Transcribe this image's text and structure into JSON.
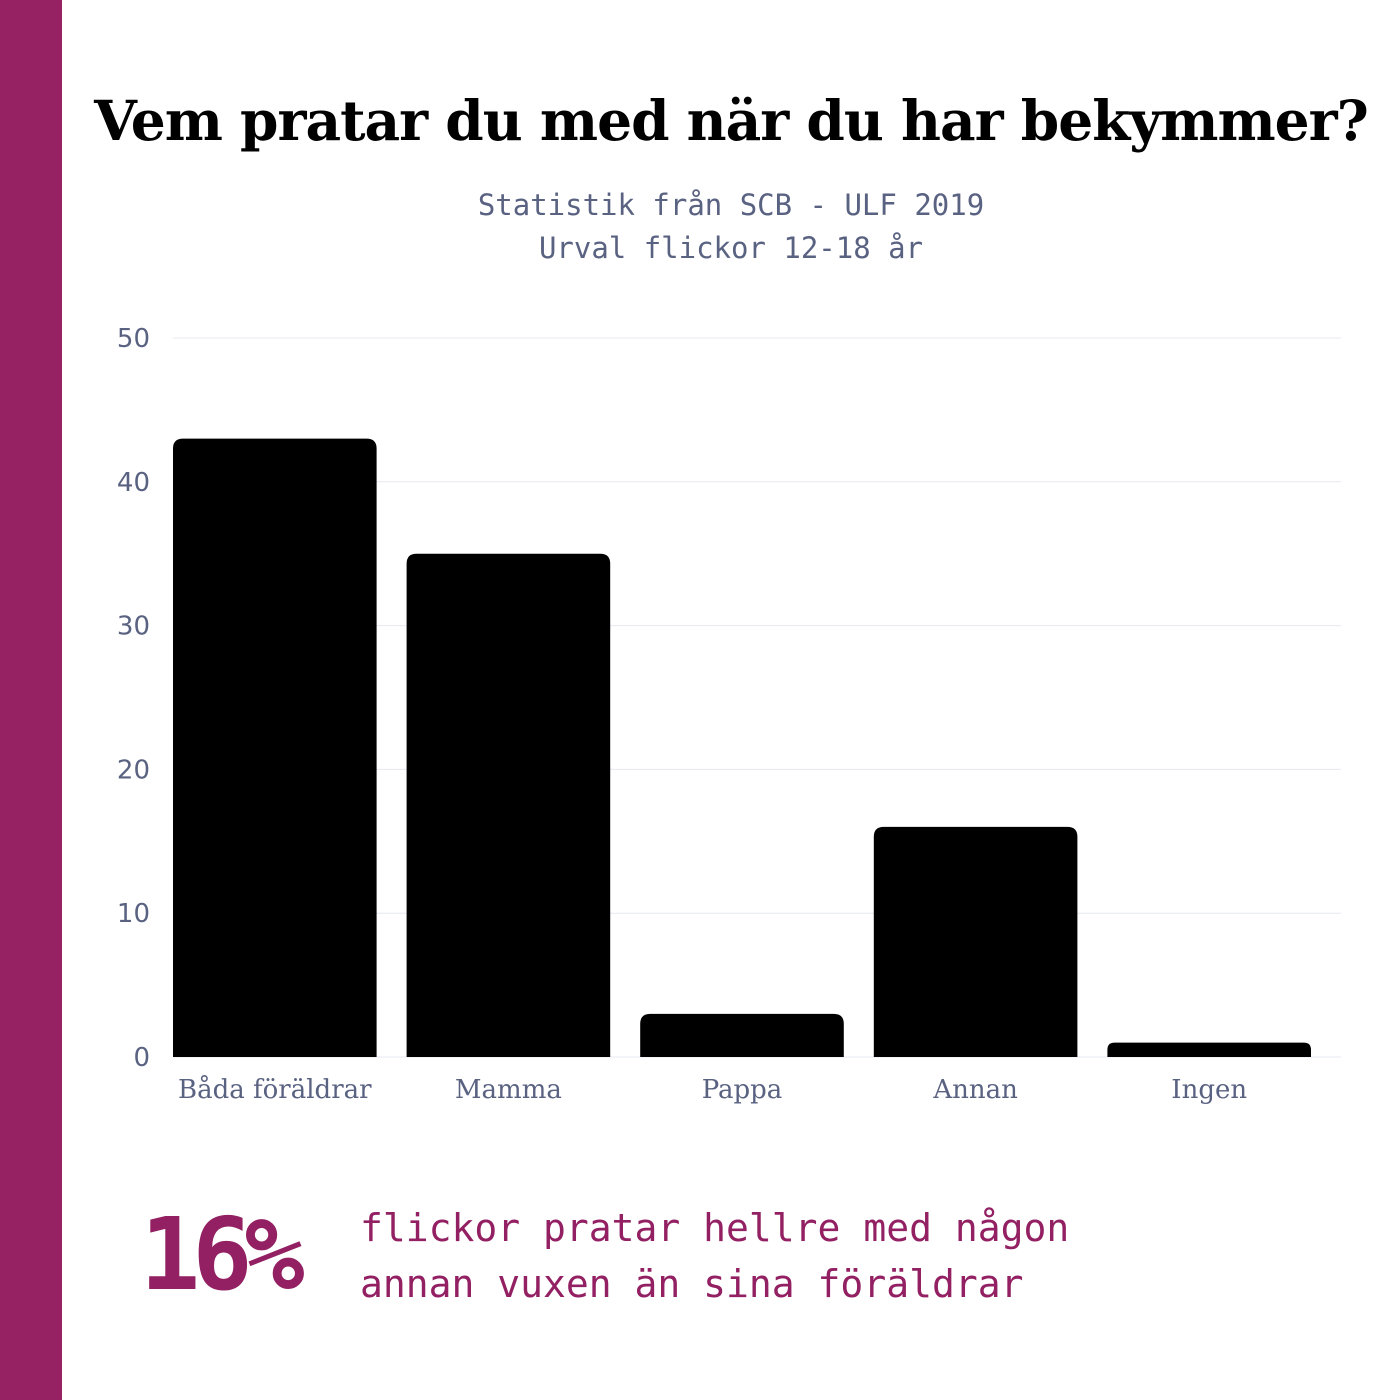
{
  "colors": {
    "accent": "#922062",
    "bar": "#000000",
    "axis_text": "#5a6282",
    "grid": "#e6e8f0"
  },
  "chart_data": {
    "type": "bar",
    "title": "Vem pratar du med när du har bekymmer?",
    "subtitle": [
      "Statistik från SCB - ULF 2019",
      "Urval flickor 12-18 år"
    ],
    "categories": [
      "Båda föräldrar",
      "Mamma",
      "Pappa",
      "Annan",
      "Ingen"
    ],
    "values": [
      43,
      35,
      3,
      16,
      1
    ],
    "yticks": [
      0,
      10,
      20,
      30,
      40,
      50
    ],
    "ylim": [
      0,
      50
    ],
    "xlabel": "",
    "ylabel": "",
    "grid": true
  },
  "callout": {
    "value": "16%",
    "lines": [
      "flickor pratar hellre med någon",
      "annan vuxen än sina föräldrar"
    ]
  }
}
